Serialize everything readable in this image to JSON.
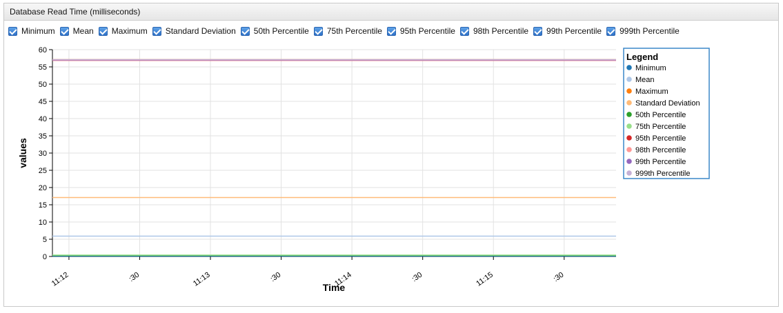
{
  "panel": {
    "title": "Database Read Time (milliseconds)"
  },
  "toggles": [
    {
      "label": "Minimum",
      "checked": true
    },
    {
      "label": "Mean",
      "checked": true
    },
    {
      "label": "Maximum",
      "checked": true
    },
    {
      "label": "Standard Deviation",
      "checked": true
    },
    {
      "label": "50th Percentile",
      "checked": true
    },
    {
      "label": "75th Percentile",
      "checked": true
    },
    {
      "label": "95th Percentile",
      "checked": true
    },
    {
      "label": "98th Percentile",
      "checked": true
    },
    {
      "label": "99th Percentile",
      "checked": true
    },
    {
      "label": "999th Percentile",
      "checked": true
    }
  ],
  "chart_data": {
    "type": "line",
    "title": "",
    "xlabel": "Time",
    "ylabel": "values",
    "ylim": [
      0,
      60
    ],
    "yticks": [
      0,
      5,
      10,
      15,
      20,
      25,
      30,
      35,
      40,
      45,
      50,
      55,
      60
    ],
    "x_ticks": [
      "11:12",
      ":30",
      "11:13",
      ":30",
      "11:14",
      ":30",
      "11:15",
      ":30"
    ],
    "x_tick_times": [
      "11:12:00",
      "11:12:30",
      "11:13:00",
      "11:13:30",
      "11:14:00",
      "11:14:30",
      "11:15:00",
      "11:15:30"
    ],
    "xlim": [
      "11:11:53",
      "11:15:52"
    ],
    "x": [
      "11:11:53",
      "11:15:52"
    ],
    "grid": true,
    "legend": {
      "title": "Legend",
      "placement": "right"
    },
    "series": [
      {
        "name": "Minimum",
        "color": "#1f77b4",
        "values": [
          0.1,
          0.1
        ]
      },
      {
        "name": "Mean",
        "color": "#aec7e8",
        "values": [
          5.9,
          5.9
        ]
      },
      {
        "name": "Maximum",
        "color": "#ff7f0e",
        "values": [
          57.1,
          57.1
        ]
      },
      {
        "name": "Standard Deviation",
        "color": "#ffbb78",
        "values": [
          17.1,
          17.1
        ]
      },
      {
        "name": "50th Percentile",
        "color": "#2ca02c",
        "values": [
          0.3,
          0.3
        ]
      },
      {
        "name": "75th Percentile",
        "color": "#98df8a",
        "values": [
          0.4,
          0.4
        ]
      },
      {
        "name": "95th Percentile",
        "color": "#d62728",
        "values": [
          56.9,
          56.9
        ]
      },
      {
        "name": "98th Percentile",
        "color": "#ff9896",
        "values": [
          56.9,
          56.9
        ]
      },
      {
        "name": "99th Percentile",
        "color": "#9467bd",
        "values": [
          57.0,
          57.0
        ]
      },
      {
        "name": "999th Percentile",
        "color": "#c5b0d5",
        "values": [
          57.1,
          57.1
        ]
      }
    ]
  }
}
